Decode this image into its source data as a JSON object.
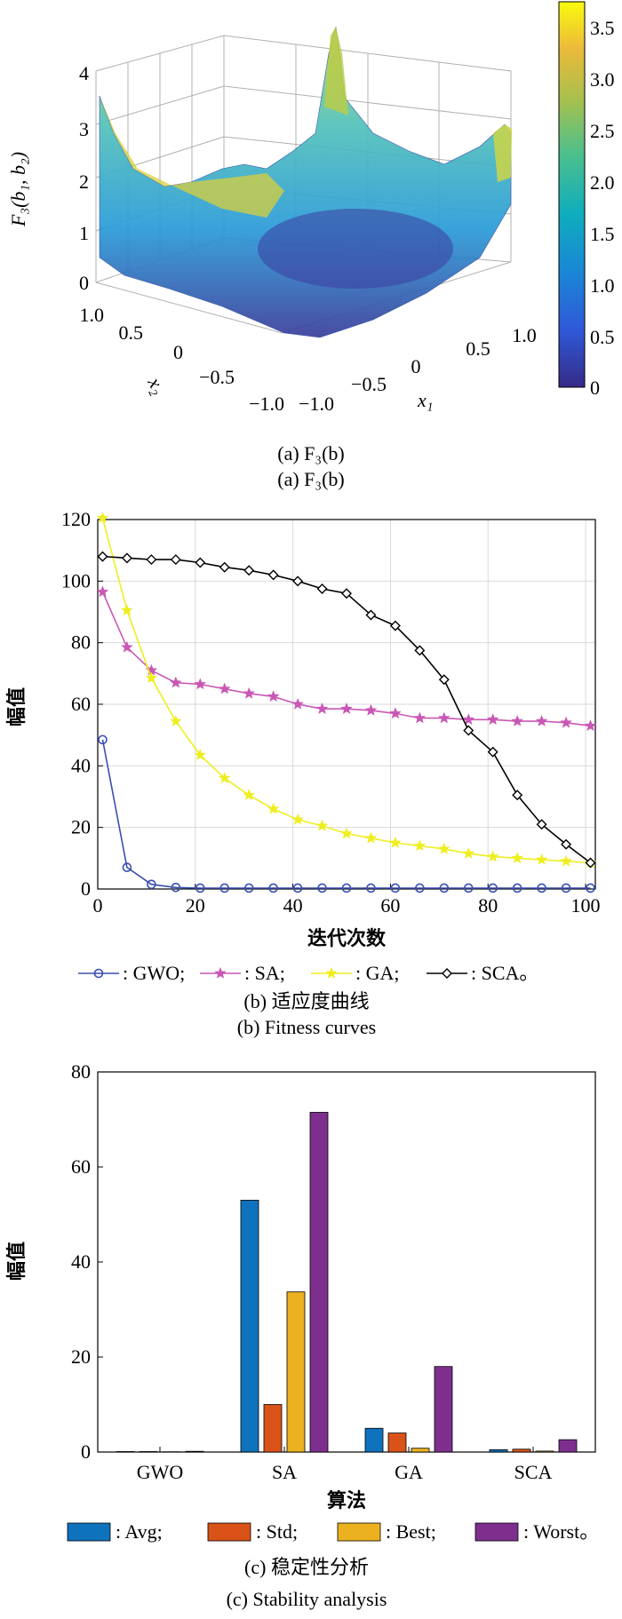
{
  "panel_a": {
    "zlabel": "F₃(b₁, b₂)",
    "xlabel": "x₁",
    "ylabel": "x₂",
    "z_ticks": [
      "0",
      "1",
      "2",
      "3",
      "4"
    ],
    "x_ticks": [
      "−1.0",
      "−0.5",
      "0",
      "0.5",
      "1.0"
    ],
    "y_ticks": [
      "−1.0",
      "−0.5",
      "0",
      "0.5",
      "1.0"
    ],
    "colorbar_ticks": [
      "0",
      "0.5",
      "1.0",
      "1.5",
      "2.0",
      "2.5",
      "3.0",
      "3.5"
    ],
    "caption_1": "(a) F₃(b)",
    "caption_2": "(a) F₃(b)"
  },
  "chart_data": [
    {
      "type": "surface",
      "title": "",
      "xlabel": "x₁",
      "ylabel": "x₂",
      "zlabel": "F₃(b₁, b₂)",
      "xlim": [
        -1,
        1
      ],
      "ylim": [
        -1,
        1
      ],
      "zlim": [
        0,
        4
      ],
      "colorbar_range": [
        0,
        3.75
      ],
      "colormap": "parula"
    },
    {
      "type": "line",
      "xlabel": "迭代次数",
      "ylabel": "幅值",
      "xlim": [
        0,
        102
      ],
      "ylim": [
        0,
        120
      ],
      "x_ticks": [
        0,
        20,
        40,
        60,
        80,
        100
      ],
      "y_ticks": [
        0,
        20,
        40,
        60,
        80,
        100,
        120
      ],
      "grid": true,
      "legend_position": "bottom",
      "series": [
        {
          "name": ": GWO;",
          "color": "#3a4fb0",
          "marker": "circle",
          "x": [
            1,
            6,
            11,
            16,
            21,
            26,
            31,
            36,
            41,
            46,
            51,
            56,
            61,
            66,
            71,
            76,
            81,
            86,
            91,
            96,
            101
          ],
          "y": [
            48.5,
            7,
            1.5,
            0.5,
            0.3,
            0.3,
            0.3,
            0.3,
            0.3,
            0.3,
            0.3,
            0.3,
            0.3,
            0.3,
            0.3,
            0.3,
            0.3,
            0.3,
            0.3,
            0.3,
            0.3
          ]
        },
        {
          "name": ": SA;",
          "color": "#c957b5",
          "marker": "star",
          "x": [
            1,
            6,
            11,
            16,
            21,
            26,
            31,
            36,
            41,
            46,
            51,
            56,
            61,
            66,
            71,
            76,
            81,
            86,
            91,
            96,
            101
          ],
          "y": [
            96.5,
            78.5,
            71,
            67,
            66.5,
            65,
            63.5,
            62.5,
            60,
            58.5,
            58.5,
            58,
            57,
            55.5,
            55.5,
            55,
            55,
            54.5,
            54.5,
            54,
            53
          ]
        },
        {
          "name": ": GA;",
          "color": "#eeee20",
          "marker": "star",
          "x": [
            1,
            6,
            11,
            16,
            21,
            26,
            31,
            36,
            41,
            46,
            51,
            56,
            61,
            66,
            71,
            76,
            81,
            86,
            91,
            96,
            101
          ],
          "y": [
            120.5,
            90.5,
            68.5,
            54.5,
            43.5,
            36,
            30.5,
            26,
            22.5,
            20.5,
            18,
            16.5,
            15,
            14,
            13,
            11.5,
            10.5,
            10,
            9.5,
            9,
            8.5
          ]
        },
        {
          "name": ": SCA。",
          "color": "#000000",
          "marker": "diamond",
          "x": [
            1,
            6,
            11,
            16,
            21,
            26,
            31,
            36,
            41,
            46,
            51,
            56,
            61,
            66,
            71,
            76,
            81,
            86,
            91,
            96,
            101
          ],
          "y": [
            108,
            107.5,
            107,
            107,
            106,
            104.5,
            103.5,
            102,
            100,
            97.5,
            96,
            89,
            85.5,
            77.5,
            68,
            51.5,
            44.5,
            30.5,
            21,
            14.5,
            8.5
          ]
        }
      ]
    },
    {
      "type": "bar",
      "xlabel": "算法",
      "ylabel": "幅值",
      "ylim": [
        0,
        80
      ],
      "y_ticks": [
        0,
        20,
        40,
        60,
        80
      ],
      "categories": [
        "GWO",
        "SA",
        "GA",
        "SCA"
      ],
      "legend_position": "bottom",
      "series": [
        {
          "name": ": Avg;",
          "color": "#0f72bd",
          "values": [
            0.1,
            53,
            5,
            0.5
          ]
        },
        {
          "name": ": Std;",
          "color": "#d95319",
          "values": [
            0.1,
            10,
            4,
            0.6
          ]
        },
        {
          "name": ": Best;",
          "color": "#ecb11f",
          "values": [
            0.05,
            33.7,
            0.8,
            0.2
          ]
        },
        {
          "name": ": Worst。",
          "color": "#7e2f8e",
          "values": [
            0.15,
            71.5,
            18,
            2.6
          ]
        }
      ]
    }
  ],
  "panel_b": {
    "caption_cn": "(b) 适应度曲线",
    "caption_en": "(b) Fitness curves"
  },
  "panel_c": {
    "caption_cn": "(c) 稳定性分析",
    "caption_en": "(c) Stability analysis"
  }
}
